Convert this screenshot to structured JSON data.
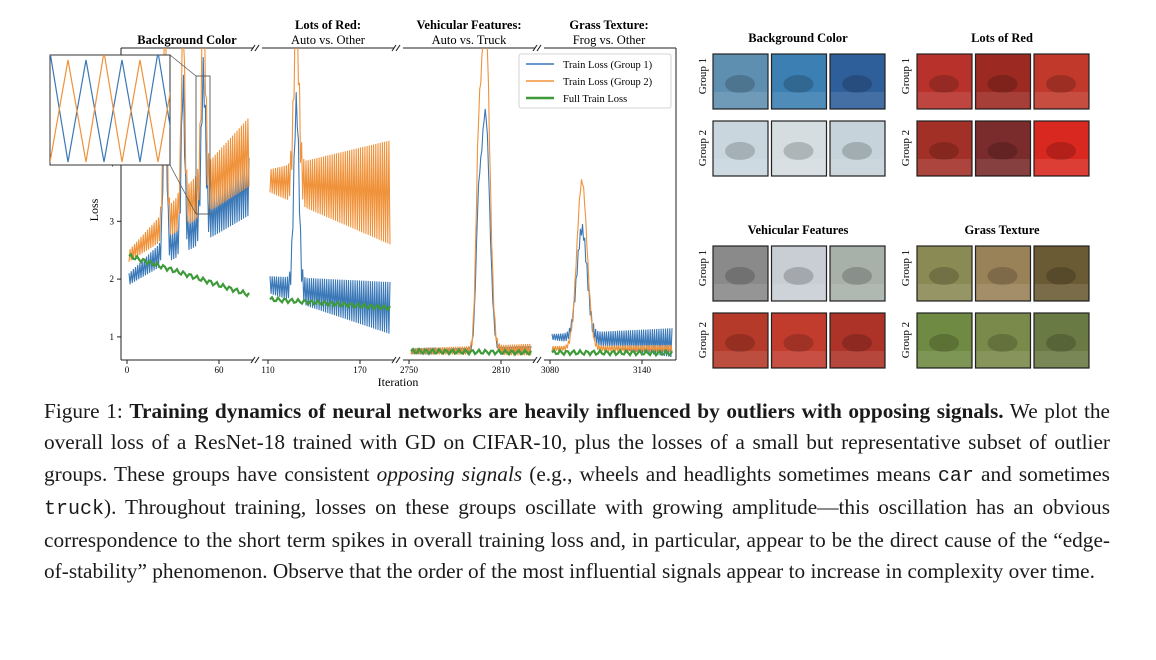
{
  "figure": {
    "panels": [
      {
        "title": "Background Color",
        "subtitle": ""
      },
      {
        "title": "Lots of Red:",
        "subtitle": "Auto vs. Other"
      },
      {
        "title": "Vehicular Features:",
        "subtitle": "Auto vs. Truck"
      },
      {
        "title": "Grass Texture:",
        "subtitle": "Frog vs. Other"
      }
    ],
    "grids": [
      {
        "title": "Background Color",
        "theme": "blue"
      },
      {
        "title": "Lots of Red",
        "theme": "red"
      },
      {
        "title": "Vehicular Features",
        "theme": "vehicle"
      },
      {
        "title": "Grass Texture",
        "theme": "grass"
      }
    ],
    "group_labels": [
      "Group 1",
      "Group 2"
    ]
  },
  "chart_data": {
    "type": "line",
    "xlabel": "Iteration",
    "ylabel": "Loss",
    "ylim": [
      0.6,
      6.0
    ],
    "ytick_labels": [
      "1",
      "2",
      "3",
      "4"
    ],
    "segment_ticks": [
      [
        "0",
        "60"
      ],
      [
        "110",
        "170"
      ],
      [
        "2750",
        "2810"
      ],
      [
        "3080",
        "3140"
      ]
    ],
    "legend": [
      "Train Loss (Group 1)",
      "Train Loss (Group 2)",
      "Full Train Loss"
    ],
    "colors": {
      "group1": "#3a78b8",
      "group2": "#f0923a",
      "full": "#3f9b3a"
    },
    "series": [
      {
        "name": "Train Loss (Group 1)",
        "segments": [
          {
            "start": 2.0,
            "end": 3.6,
            "amp_start": 0.1,
            "amp_end": 0.5
          },
          {
            "start": 1.9,
            "end": 1.5,
            "amp_start": 0.15,
            "amp_end": 0.45
          },
          {
            "start": 0.75,
            "end": 0.78,
            "amp_start": 0.03,
            "amp_end": 0.06
          },
          {
            "start": 1.0,
            "end": 0.9,
            "amp_start": 0.05,
            "amp_end": 0.25
          }
        ]
      },
      {
        "name": "Train Loss (Group 2)",
        "segments": [
          {
            "start": 2.4,
            "end": 4.2,
            "amp_start": 0.1,
            "amp_end": 0.6
          },
          {
            "start": 3.7,
            "end": 3.5,
            "amp_start": 0.2,
            "amp_end": 0.9
          },
          {
            "start": 0.75,
            "end": 0.78,
            "amp_start": 0.05,
            "amp_end": 0.1
          },
          {
            "start": 0.8,
            "end": 0.8,
            "amp_start": 0.04,
            "amp_end": 0.06
          }
        ]
      },
      {
        "name": "Full Train Loss",
        "segments": [
          {
            "start": 2.4,
            "end": 1.73
          },
          {
            "start": 1.65,
            "end": 1.5
          },
          {
            "start": 0.75,
            "end": 0.73
          },
          {
            "start": 0.73,
            "end": 0.72
          }
        ]
      }
    ]
  },
  "caption": {
    "label": "Figure 1: ",
    "lead": "Training dynamics of neural networks are heavily influenced by outliers with opposing signals.",
    "t1": " We plot the overall loss of a ResNet-18 trained with GD on CIFAR-10, plus the losses of a small but representative subset of outlier groups. These groups have consistent ",
    "it": "opposing signals",
    "t2": " (e.g., wheels and headlights sometimes means ",
    "code1": "car",
    "t3": " and sometimes ",
    "code2": "truck",
    "t4": "). Throughout training, losses on these groups oscillate with growing amplitude—this oscillation has an obvious correspondence to the short term spikes in overall training loss and, in particular, appear to be the direct cause of the “edge-of-stability” phenomenon. Observe that the order of the most influential signals appear to increase in complexity over time."
  }
}
